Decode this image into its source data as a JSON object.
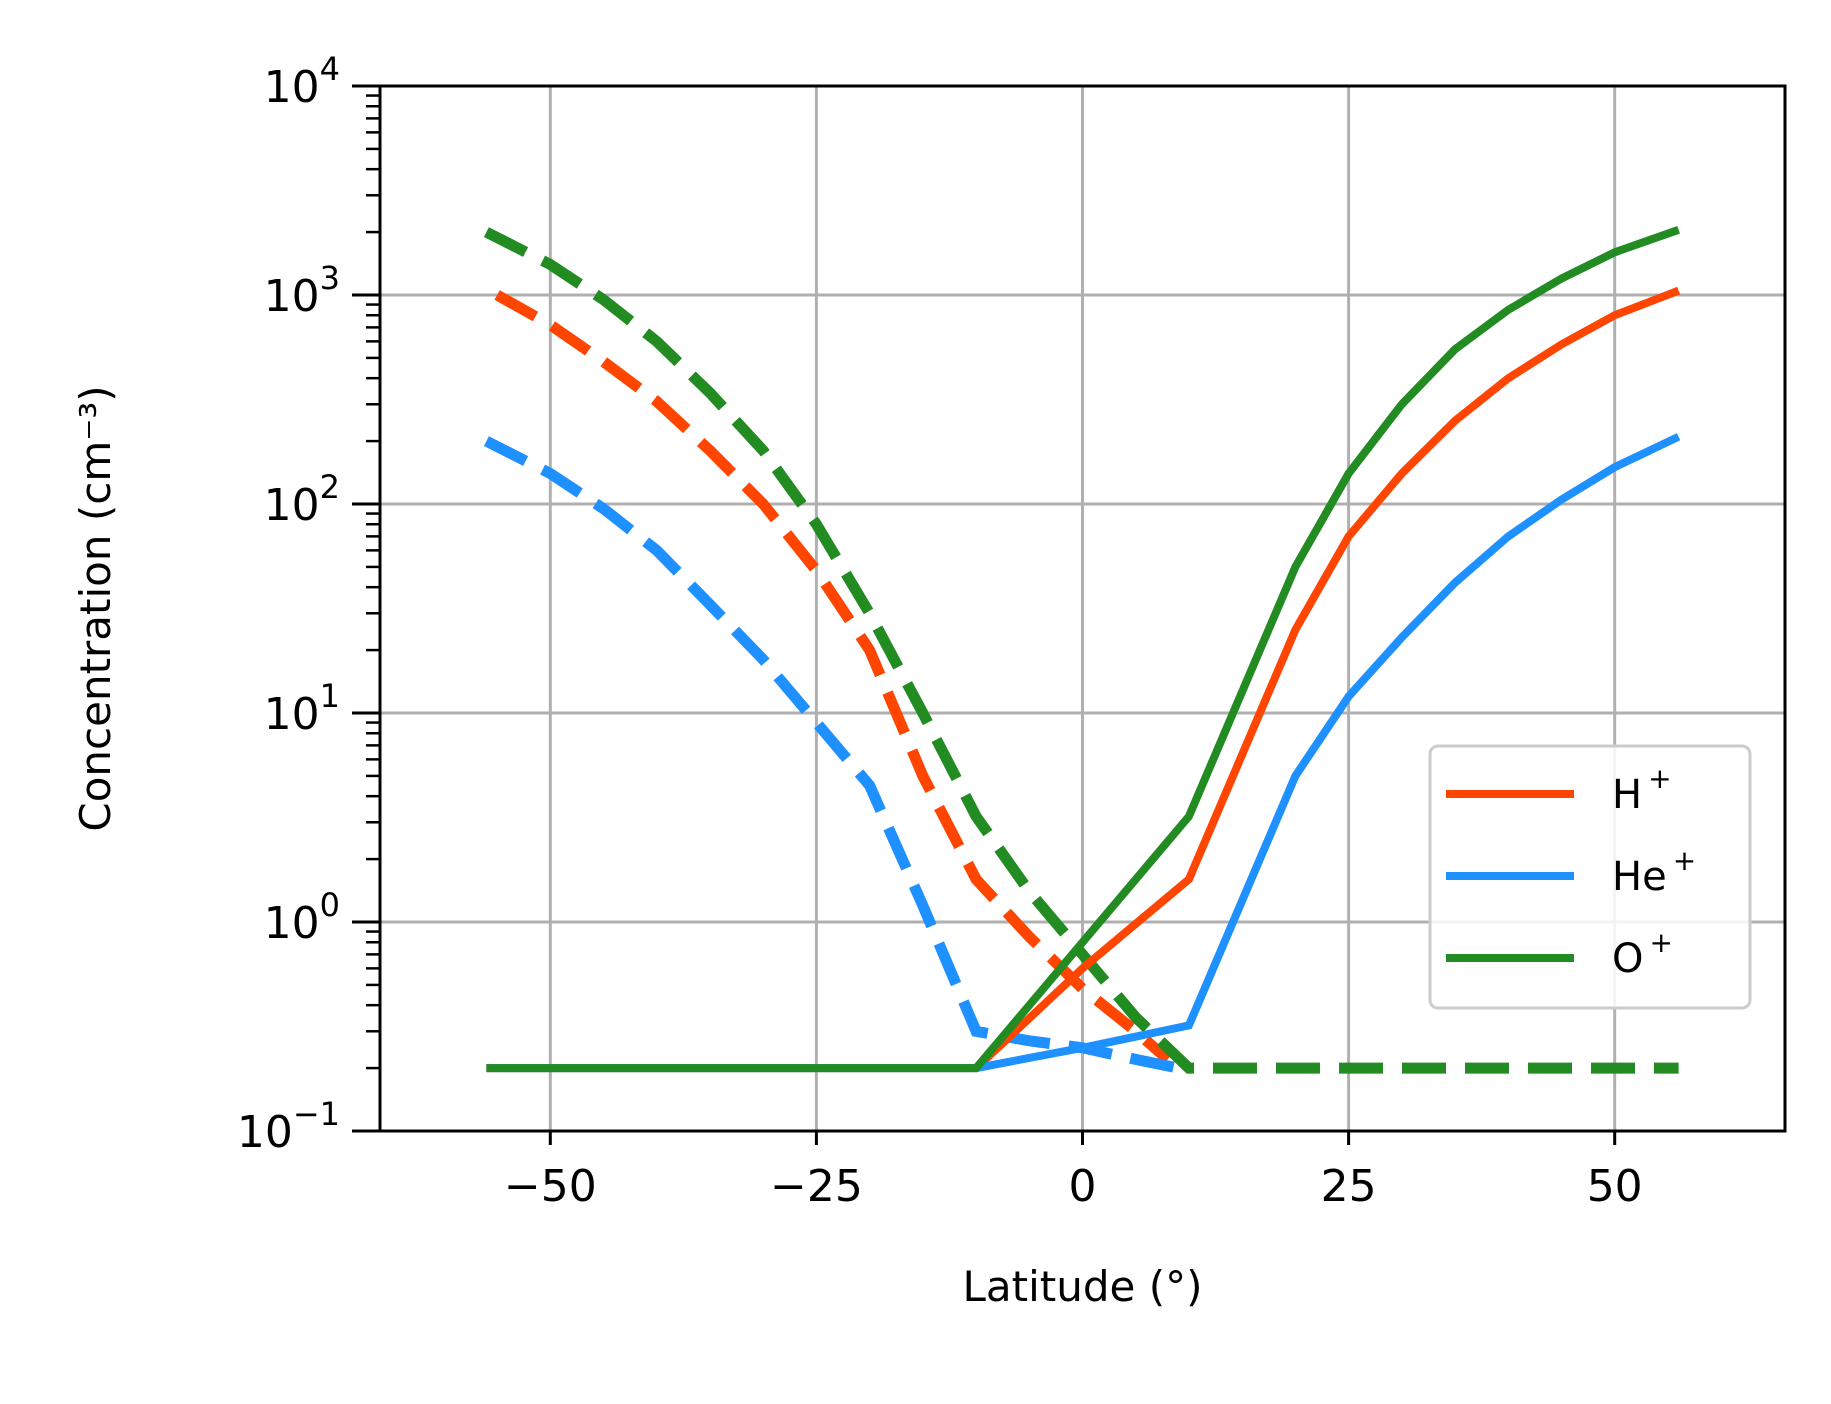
{
  "chart_data": {
    "type": "line",
    "xlabel": "Latitude (°)",
    "ylabel": "Concentration (cm⁻³)",
    "xlim": [
      -66,
      66
    ],
    "ylim": [
      0.1,
      10000
    ],
    "yscale": "log",
    "grid": true,
    "legend_position": "lower-right",
    "x_ticks": [
      {
        "value": -50,
        "label": "−50"
      },
      {
        "value": -25,
        "label": "−25"
      },
      {
        "value": 0,
        "label": "0"
      },
      {
        "value": 25,
        "label": "25"
      },
      {
        "value": 50,
        "label": "50"
      }
    ],
    "y_ticks": [
      {
        "value": 0.1,
        "base": "10",
        "exp": "−1"
      },
      {
        "value": 1,
        "base": "10",
        "exp": "0"
      },
      {
        "value": 10,
        "base": "10",
        "exp": "1"
      },
      {
        "value": 100,
        "base": "10",
        "exp": "2"
      },
      {
        "value": 1000,
        "base": "10",
        "exp": "3"
      },
      {
        "value": 10000,
        "base": "10",
        "exp": "4"
      }
    ],
    "series": [
      {
        "name": "H⁺",
        "legend_base": "H",
        "legend_sup": "+",
        "color": "#ff4500",
        "dashed": {
          "x": [
            -55,
            -50,
            -45,
            -40,
            -35,
            -30,
            -25,
            -20,
            -15,
            -10,
            -5,
            0,
            5,
            8
          ],
          "y": [
            1000,
            720,
            480,
            310,
            180,
            100,
            48,
            20,
            5,
            1.6,
            0.85,
            0.48,
            0.3,
            0.22
          ]
        },
        "solid": {
          "x": [
            -56,
            -10,
            0,
            10,
            20,
            25,
            30,
            35,
            40,
            45,
            50,
            56
          ],
          "y": [
            0.2,
            0.2,
            0.6,
            1.6,
            25,
            70,
            140,
            250,
            400,
            580,
            800,
            1050
          ]
        }
      },
      {
        "name": "He⁺",
        "legend_base": "He",
        "legend_sup": "+",
        "color": "#1e90ff",
        "dashed": {
          "x": [
            -56,
            -50,
            -45,
            -40,
            -35,
            -30,
            -25,
            -20,
            -15,
            -10,
            -5,
            0,
            5,
            9
          ],
          "y": [
            200,
            140,
            95,
            60,
            33,
            18,
            9,
            4.5,
            1.2,
            0.3,
            0.27,
            0.25,
            0.22,
            0.2
          ]
        },
        "solid": {
          "x": [
            -56,
            -10,
            0,
            10,
            20,
            25,
            30,
            35,
            40,
            45,
            50,
            56
          ],
          "y": [
            0.2,
            0.2,
            0.25,
            0.32,
            5,
            12,
            23,
            42,
            70,
            105,
            150,
            210
          ]
        }
      },
      {
        "name": "O⁺",
        "legend_base": "O",
        "legend_sup": "+",
        "color": "#228b22",
        "dashed": {
          "x": [
            -56,
            -50,
            -45,
            -40,
            -35,
            -30,
            -25,
            -20,
            -15,
            -10,
            -5,
            0,
            5,
            10,
            15,
            20,
            25,
            30,
            35,
            40,
            45,
            50,
            56
          ],
          "y": [
            2000,
            1400,
            950,
            600,
            340,
            180,
            80,
            30,
            10,
            3.2,
            1.4,
            0.7,
            0.35,
            0.2,
            0.2,
            0.2,
            0.2,
            0.2,
            0.2,
            0.2,
            0.2,
            0.2,
            0.2
          ]
        },
        "solid": {
          "x": [
            -56,
            -10,
            0,
            10,
            20,
            25,
            30,
            35,
            40,
            45,
            50,
            56
          ],
          "y": [
            0.2,
            0.2,
            0.8,
            3.2,
            50,
            140,
            300,
            550,
            850,
            1200,
            1600,
            2050
          ]
        }
      }
    ]
  }
}
